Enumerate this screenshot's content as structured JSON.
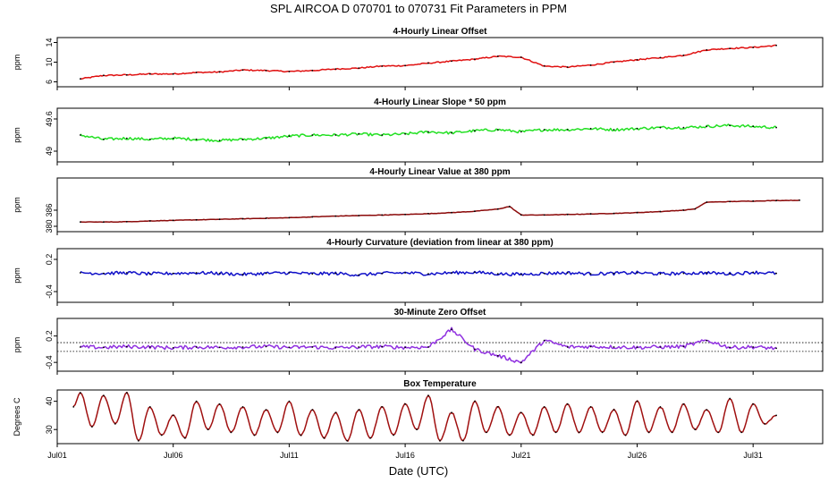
{
  "page": {
    "title": "SPL   AIRCOA D   070701 to 070731   Fit Parameters in PPM",
    "xlabel": "Date (UTC)"
  },
  "x_axis": {
    "type": "date",
    "range": [
      "2007-07-01",
      "2007-08-03"
    ],
    "ticks": [
      {
        "date": "2007-07-01",
        "label": "Jul01"
      },
      {
        "date": "2007-07-06",
        "label": "Jul06"
      },
      {
        "date": "2007-07-11",
        "label": "Jul11"
      },
      {
        "date": "2007-07-16",
        "label": "Jul16"
      },
      {
        "date": "2007-07-21",
        "label": "Jul21"
      },
      {
        "date": "2007-07-26",
        "label": "Jul26"
      },
      {
        "date": "2007-07-31",
        "label": "Jul31"
      }
    ]
  },
  "chart_data": [
    {
      "type": "line",
      "title": "4-Hourly Linear Offset",
      "ylabel": "ppm",
      "ylim": [
        5,
        15
      ],
      "yticks": [
        6,
        10,
        14
      ],
      "color": "#e01010",
      "x": [
        "2007-07-02",
        "2007-07-03",
        "2007-07-04",
        "2007-07-05",
        "2007-07-06",
        "2007-07-07",
        "2007-07-08",
        "2007-07-09",
        "2007-07-10",
        "2007-07-11",
        "2007-07-12",
        "2007-07-13",
        "2007-07-14",
        "2007-07-15",
        "2007-07-16",
        "2007-07-17",
        "2007-07-18",
        "2007-07-19",
        "2007-07-20",
        "2007-07-21",
        "2007-07-22",
        "2007-07-23",
        "2007-07-24",
        "2007-07-25",
        "2007-07-26",
        "2007-07-27",
        "2007-07-28",
        "2007-07-29",
        "2007-07-30",
        "2007-07-31",
        "2007-08-01"
      ],
      "values": [
        6.6,
        7.3,
        7.4,
        7.6,
        7.6,
        7.9,
        8.0,
        8.4,
        8.3,
        8.1,
        8.3,
        8.6,
        8.8,
        9.2,
        9.3,
        9.8,
        10.2,
        10.6,
        11.2,
        11.0,
        9.2,
        9.0,
        9.4,
        10.0,
        10.5,
        10.9,
        11.4,
        12.5,
        12.8,
        13.0,
        13.4
      ],
      "mode": "line"
    },
    {
      "type": "line",
      "title": "4-Hourly Linear Slope * 50 ppm",
      "ylabel": "ppm",
      "ylim": [
        48.8,
        49.8
      ],
      "yticks": [
        49.0,
        49.6
      ],
      "color": "#22e022",
      "x": [
        "2007-07-02",
        "2007-07-03",
        "2007-07-04",
        "2007-07-05",
        "2007-07-06",
        "2007-07-07",
        "2007-07-08",
        "2007-07-09",
        "2007-07-10",
        "2007-07-11",
        "2007-07-12",
        "2007-07-13",
        "2007-07-14",
        "2007-07-15",
        "2007-07-16",
        "2007-07-17",
        "2007-07-18",
        "2007-07-19",
        "2007-07-20",
        "2007-07-21",
        "2007-07-22",
        "2007-07-23",
        "2007-07-24",
        "2007-07-25",
        "2007-07-26",
        "2007-07-27",
        "2007-07-28",
        "2007-07-29",
        "2007-07-30",
        "2007-07-31",
        "2007-08-01"
      ],
      "values": [
        49.3,
        49.22,
        49.24,
        49.22,
        49.24,
        49.22,
        49.2,
        49.22,
        49.24,
        49.28,
        49.3,
        49.3,
        49.32,
        49.3,
        49.32,
        49.36,
        49.34,
        49.38,
        49.4,
        49.36,
        49.4,
        49.4,
        49.42,
        49.4,
        49.42,
        49.44,
        49.44,
        49.46,
        49.48,
        49.46,
        49.44
      ],
      "mode": "line"
    },
    {
      "type": "line",
      "title": "4-Hourly Linear Value at 380 ppm",
      "ylabel": "ppm",
      "ylim": [
        378,
        398
      ],
      "yticks": [
        380,
        386
      ],
      "color": "#8b0a0a",
      "x": [
        "2007-07-02",
        "2007-07-03",
        "2007-07-04",
        "2007-07-05",
        "2007-07-06",
        "2007-07-07",
        "2007-07-08",
        "2007-07-09",
        "2007-07-10",
        "2007-07-11",
        "2007-07-12",
        "2007-07-13",
        "2007-07-14",
        "2007-07-15",
        "2007-07-16",
        "2007-07-17",
        "2007-07-18",
        "2007-07-19",
        "2007-07-20",
        "2007-07-20.5",
        "2007-07-21",
        "2007-07-22",
        "2007-07-23",
        "2007-07-24",
        "2007-07-25",
        "2007-07-26",
        "2007-07-27",
        "2007-07-28",
        "2007-07-28.5",
        "2007-07-29",
        "2007-07-30",
        "2007-07-31",
        "2007-08-01",
        "2007-08-02"
      ],
      "values": [
        381.6,
        381.6,
        381.7,
        382.0,
        382.2,
        382.4,
        382.6,
        382.8,
        383.0,
        383.2,
        383.5,
        383.8,
        384.0,
        384.2,
        384.4,
        384.7,
        385.1,
        385.6,
        386.4,
        387.4,
        384.2,
        384.2,
        384.4,
        384.6,
        384.8,
        385.1,
        385.5,
        386.0,
        386.5,
        389.0,
        389.2,
        389.4,
        389.6,
        389.7
      ],
      "mode": "line"
    },
    {
      "type": "line",
      "title": "4-Hourly Curvature (deviation from linear at 380 ppm)",
      "ylabel": "ppm",
      "ylim": [
        -0.6,
        0.4
      ],
      "yticks": [
        -0.4,
        0.2
      ],
      "color": "#1010c8",
      "x": [
        "2007-07-02",
        "2007-07-03",
        "2007-07-04",
        "2007-07-05",
        "2007-07-06",
        "2007-07-07",
        "2007-07-08",
        "2007-07-09",
        "2007-07-10",
        "2007-07-11",
        "2007-07-12",
        "2007-07-13",
        "2007-07-14",
        "2007-07-15",
        "2007-07-16",
        "2007-07-17",
        "2007-07-18",
        "2007-07-19",
        "2007-07-20",
        "2007-07-21",
        "2007-07-22",
        "2007-07-23",
        "2007-07-24",
        "2007-07-25",
        "2007-07-26",
        "2007-07-27",
        "2007-07-28",
        "2007-07-29",
        "2007-07-30",
        "2007-07-31",
        "2007-08-01"
      ],
      "values": [
        -0.05,
        -0.06,
        -0.05,
        -0.07,
        -0.06,
        -0.05,
        -0.06,
        -0.08,
        -0.06,
        -0.05,
        -0.07,
        -0.06,
        -0.09,
        -0.06,
        -0.05,
        -0.07,
        -0.05,
        -0.04,
        -0.07,
        -0.08,
        -0.06,
        -0.05,
        -0.07,
        -0.06,
        -0.05,
        -0.07,
        -0.06,
        -0.05,
        -0.07,
        -0.04,
        -0.06
      ],
      "mode": "line"
    },
    {
      "type": "line",
      "title": "30-Minute Zero Offset",
      "ylabel": "ppm",
      "ylim": [
        -0.6,
        0.6
      ],
      "yticks": [
        -0.4,
        0.2
      ],
      "reference_lines": [
        0.05,
        -0.15
      ],
      "color": "#9030e0",
      "x": [
        "2007-07-02",
        "2007-07-03",
        "2007-07-04",
        "2007-07-05",
        "2007-07-06",
        "2007-07-07",
        "2007-07-08",
        "2007-07-09",
        "2007-07-10",
        "2007-07-11",
        "2007-07-12",
        "2007-07-13",
        "2007-07-14",
        "2007-07-15",
        "2007-07-16",
        "2007-07-17",
        "2007-07-18",
        "2007-07-19",
        "2007-07-20",
        "2007-07-21",
        "2007-07-22",
        "2007-07-23",
        "2007-07-24",
        "2007-07-25",
        "2007-07-26",
        "2007-07-27",
        "2007-07-28",
        "2007-07-29",
        "2007-07-30",
        "2007-07-31",
        "2007-08-01"
      ],
      "values": [
        -0.05,
        -0.06,
        -0.04,
        -0.05,
        -0.07,
        -0.05,
        -0.06,
        -0.05,
        -0.04,
        -0.06,
        -0.05,
        -0.07,
        -0.05,
        -0.04,
        -0.06,
        -0.05,
        0.35,
        -0.1,
        -0.25,
        -0.4,
        0.1,
        -0.05,
        -0.04,
        -0.05,
        -0.06,
        -0.05,
        -0.04,
        0.1,
        -0.06,
        -0.05,
        -0.08
      ],
      "mode": "line"
    },
    {
      "type": "line",
      "title": "Box Temperature",
      "ylabel": "Degrees C",
      "ylim": [
        25,
        44
      ],
      "yticks": [
        30,
        40
      ],
      "color": "#a01010",
      "x": [
        "2007-07-01.7",
        "2007-07-02",
        "2007-07-02.5",
        "2007-07-03",
        "2007-07-03.5",
        "2007-07-04",
        "2007-07-04.5",
        "2007-07-05",
        "2007-07-05.5",
        "2007-07-06",
        "2007-07-06.5",
        "2007-07-07",
        "2007-07-07.5",
        "2007-07-08",
        "2007-07-08.5",
        "2007-07-09",
        "2007-07-09.5",
        "2007-07-10",
        "2007-07-10.5",
        "2007-07-11",
        "2007-07-11.5",
        "2007-07-12",
        "2007-07-12.5",
        "2007-07-13",
        "2007-07-13.5",
        "2007-07-14",
        "2007-07-14.5",
        "2007-07-15",
        "2007-07-15.5",
        "2007-07-16",
        "2007-07-16.5",
        "2007-07-17",
        "2007-07-17.5",
        "2007-07-18",
        "2007-07-18.5",
        "2007-07-19",
        "2007-07-19.5",
        "2007-07-20",
        "2007-07-20.5",
        "2007-07-21",
        "2007-07-21.5",
        "2007-07-22",
        "2007-07-22.5",
        "2007-07-23",
        "2007-07-23.5",
        "2007-07-24",
        "2007-07-24.5",
        "2007-07-25",
        "2007-07-25.5",
        "2007-07-26",
        "2007-07-26.5",
        "2007-07-27",
        "2007-07-27.5",
        "2007-07-28",
        "2007-07-28.5",
        "2007-07-29",
        "2007-07-29.5",
        "2007-07-30",
        "2007-07-30.5",
        "2007-07-31",
        "2007-07-31.5",
        "2007-08-01"
      ],
      "values": [
        38,
        43,
        31,
        42,
        32,
        43,
        26,
        38,
        28,
        35,
        27,
        40,
        30,
        39,
        29,
        38,
        28,
        37,
        29,
        40,
        28,
        37,
        27,
        36,
        26,
        37,
        27,
        38,
        28,
        39,
        30,
        42,
        26,
        36,
        26,
        40,
        29,
        38,
        28,
        36,
        28,
        38,
        29,
        39,
        29,
        38,
        29,
        37,
        28,
        40,
        29,
        38,
        29,
        39,
        30,
        37,
        29,
        41,
        29,
        39,
        32,
        35
      ],
      "mode": "line"
    }
  ]
}
